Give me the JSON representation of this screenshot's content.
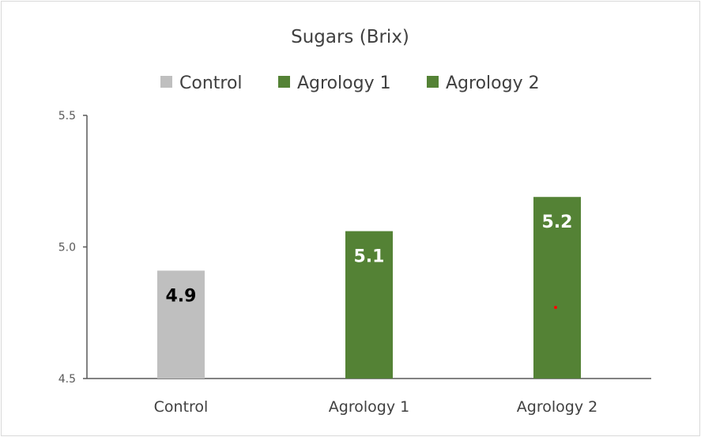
{
  "chart_data": {
    "type": "bar",
    "title": "Sugars (Brix)",
    "xlabel": "",
    "ylabel": "",
    "categories": [
      "Control",
      "Agrology 1",
      "Agrology 2"
    ],
    "values": [
      4.91,
      5.06,
      5.19
    ],
    "data_labels": [
      "4.9",
      "5.1",
      "5.2"
    ],
    "colors": [
      "#bfbfbf",
      "#548235",
      "#548235"
    ],
    "label_colors": [
      "#000000",
      "#ffffff",
      "#ffffff"
    ],
    "legend": {
      "placement": "top",
      "entries": [
        {
          "label": "Control",
          "color": "#bfbfbf"
        },
        {
          "label": "Agrology 1",
          "color": "#548235"
        },
        {
          "label": "Agrology 2",
          "color": "#548235"
        }
      ]
    },
    "ylim": [
      4.5,
      5.5
    ],
    "yticks": [
      "4.5",
      "5.0",
      "5.5"
    ],
    "ytick_values": [
      4.5,
      5.0,
      5.5
    ],
    "grid": false
  }
}
